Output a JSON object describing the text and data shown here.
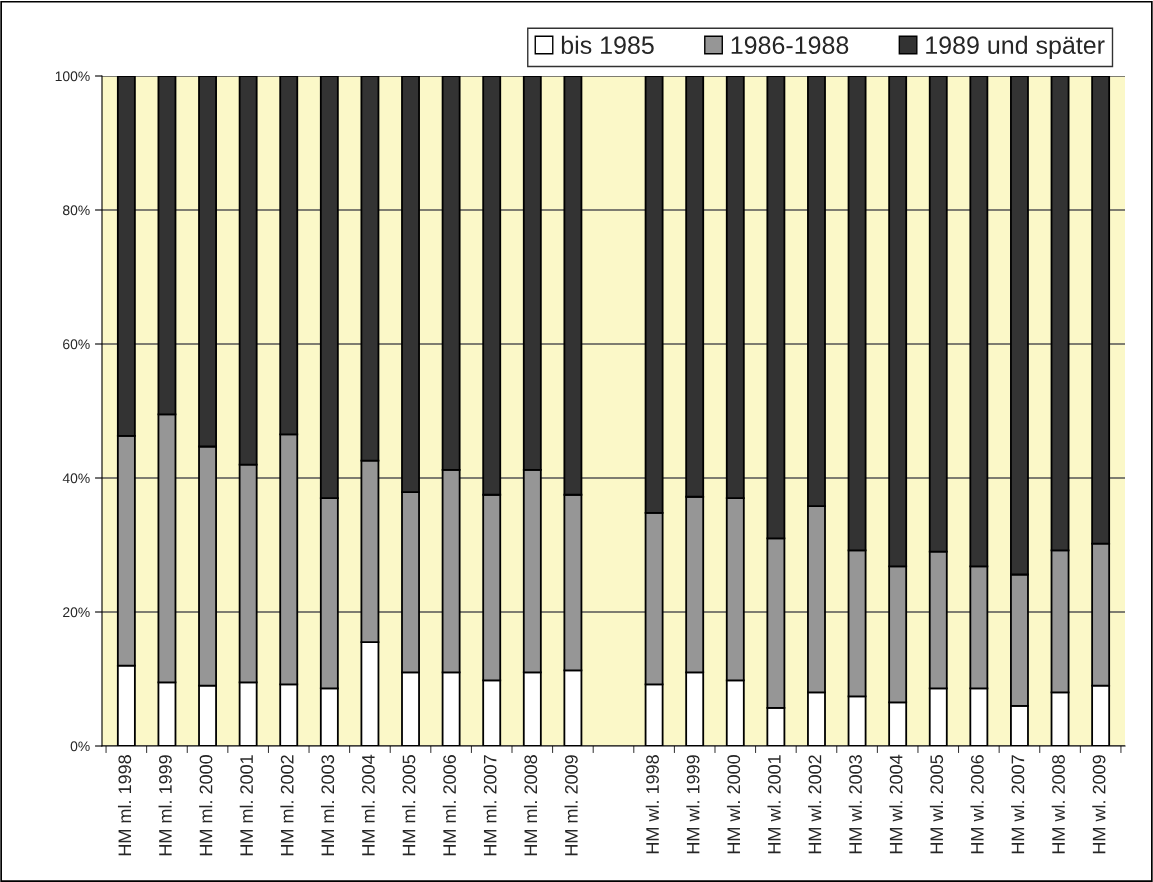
{
  "chart_data": {
    "type": "bar",
    "stacked": true,
    "categories": [
      "HM ml. 1998",
      "HM ml. 1999",
      "HM ml. 2000",
      "HM ml. 2001",
      "HM ml. 2002",
      "HM ml. 2003",
      "HM ml. 2004",
      "HM ml. 2005",
      "HM ml. 2006",
      "HM ml. 2007",
      "HM ml. 2008",
      "HM ml. 2009",
      null,
      "HM wl. 1998",
      "HM wl. 1999",
      "HM wl. 2000",
      "HM wl. 2001",
      "HM wl. 2002",
      "HM wl. 2003",
      "HM wl. 2004",
      "HM wl. 2005",
      "HM wl. 2006",
      "HM wl. 2007",
      "HM wl. 2008",
      "HM wl. 2009"
    ],
    "series": [
      {
        "name": "bis 1985",
        "color": "#ffffff",
        "values": [
          12,
          9.5,
          9,
          9.5,
          9.2,
          8.6,
          15.5,
          11,
          11,
          9.8,
          11,
          11.3,
          null,
          9.2,
          11,
          9.8,
          5.7,
          8,
          7.4,
          6.5,
          8.6,
          8.6,
          6,
          8,
          9
        ]
      },
      {
        "name": "1986-1988",
        "color": "#969696",
        "values": [
          34.3,
          40.0,
          35.7,
          32.5,
          37.3,
          28.4,
          27.1,
          26.9,
          30.2,
          27.7,
          30.2,
          26.2,
          null,
          25.6,
          26.2,
          27.2,
          25.3,
          27.8,
          21.8,
          20.3,
          20.4,
          18.2,
          19.6,
          21.2,
          21.2
        ]
      },
      {
        "name": "1989 und später",
        "color": "#333333",
        "values": [
          53.7,
          50.5,
          55.3,
          58.0,
          53.5,
          63.0,
          57.4,
          62.1,
          58.8,
          62.5,
          58.8,
          62.5,
          null,
          65.2,
          62.8,
          63.0,
          69.0,
          64.2,
          70.8,
          73.2,
          71.0,
          73.2,
          74.4,
          70.8,
          69.8
        ]
      }
    ],
    "ylim": [
      0,
      100
    ],
    "yticks": [
      {
        "value": 0,
        "label": "0%"
      },
      {
        "value": 20,
        "label": "20%"
      },
      {
        "value": 40,
        "label": "40%"
      },
      {
        "value": 60,
        "label": "60%"
      },
      {
        "value": 80,
        "label": "80%"
      },
      {
        "value": 100,
        "label": "100%"
      }
    ],
    "grid": "y",
    "legend": "top right"
  }
}
